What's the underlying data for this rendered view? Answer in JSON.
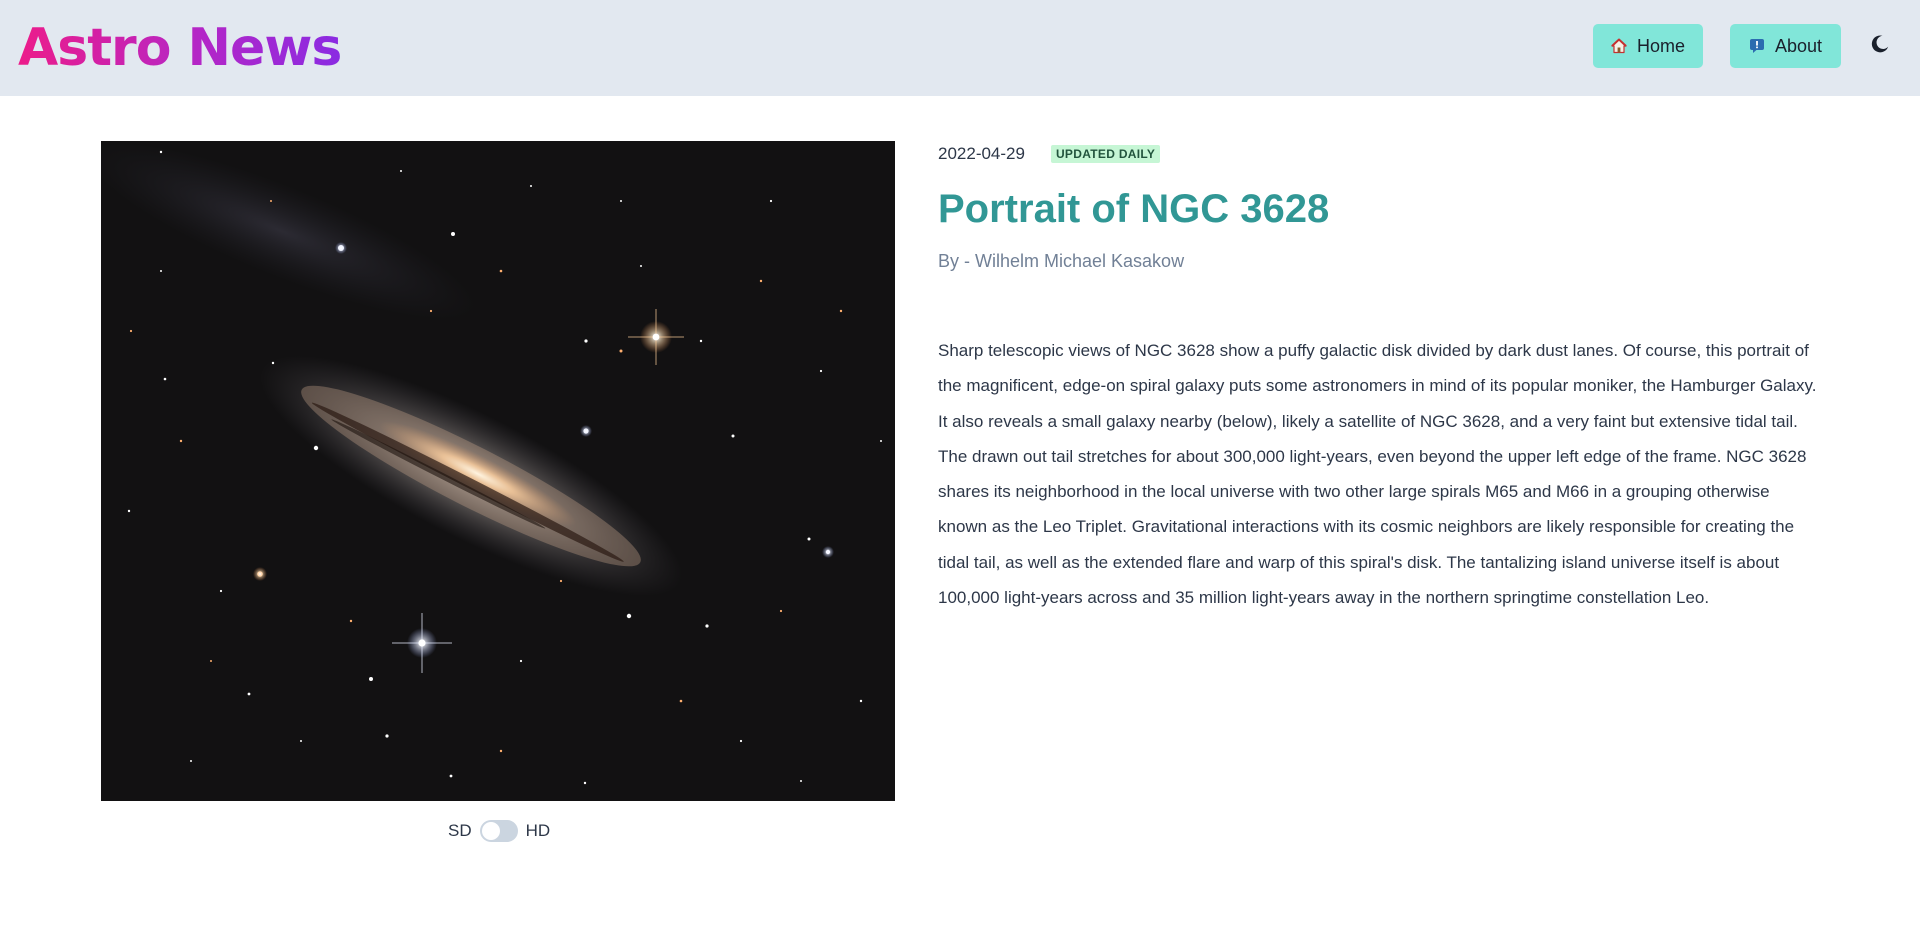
{
  "header": {
    "brand": "Astro News",
    "nav": [
      {
        "label": "Home",
        "icon": "house-icon"
      },
      {
        "label": "About",
        "icon": "info-icon"
      }
    ],
    "theme_toggle_icon": "moon-icon"
  },
  "article": {
    "date": "2022-04-29",
    "badge": "UPDATED DAILY",
    "title": "Portrait of NGC 3628",
    "author": "By - Wilhelm Michael Kasakow",
    "description": "Sharp telescopic views of NGC 3628 show a puffy galactic disk divided by dark dust lanes. Of course, this portrait of the magnificent, edge-on spiral galaxy puts some astronomers in mind of its popular moniker, the Hamburger Galaxy. It also reveals a small galaxy nearby (below), likely a satellite of NGC 3628, and a very faint but extensive tidal tail. The drawn out tail stretches for about 300,000 light-years, even beyond the upper left edge of the frame. NGC 3628 shares its neighborhood in the local universe with two other large spirals M65 and M66 in a grouping otherwise known as the Leo Triplet. Gravitational interactions with its cosmic neighbors are likely responsible for creating the tidal tail, as well as the extended flare and warp of this spiral's disk. The tantalizing island universe itself is about 100,000 light-years across and 35 million light-years away in the northern springtime constellation Leo."
  },
  "quality_toggle": {
    "left_label": "SD",
    "right_label": "HD",
    "hd_enabled": false
  },
  "colors": {
    "header_bg": "#e2e8f0",
    "nav_button_bg": "#81e6d9",
    "title": "#319795",
    "badge_bg": "#c6f6d5",
    "badge_text": "#22543d"
  }
}
